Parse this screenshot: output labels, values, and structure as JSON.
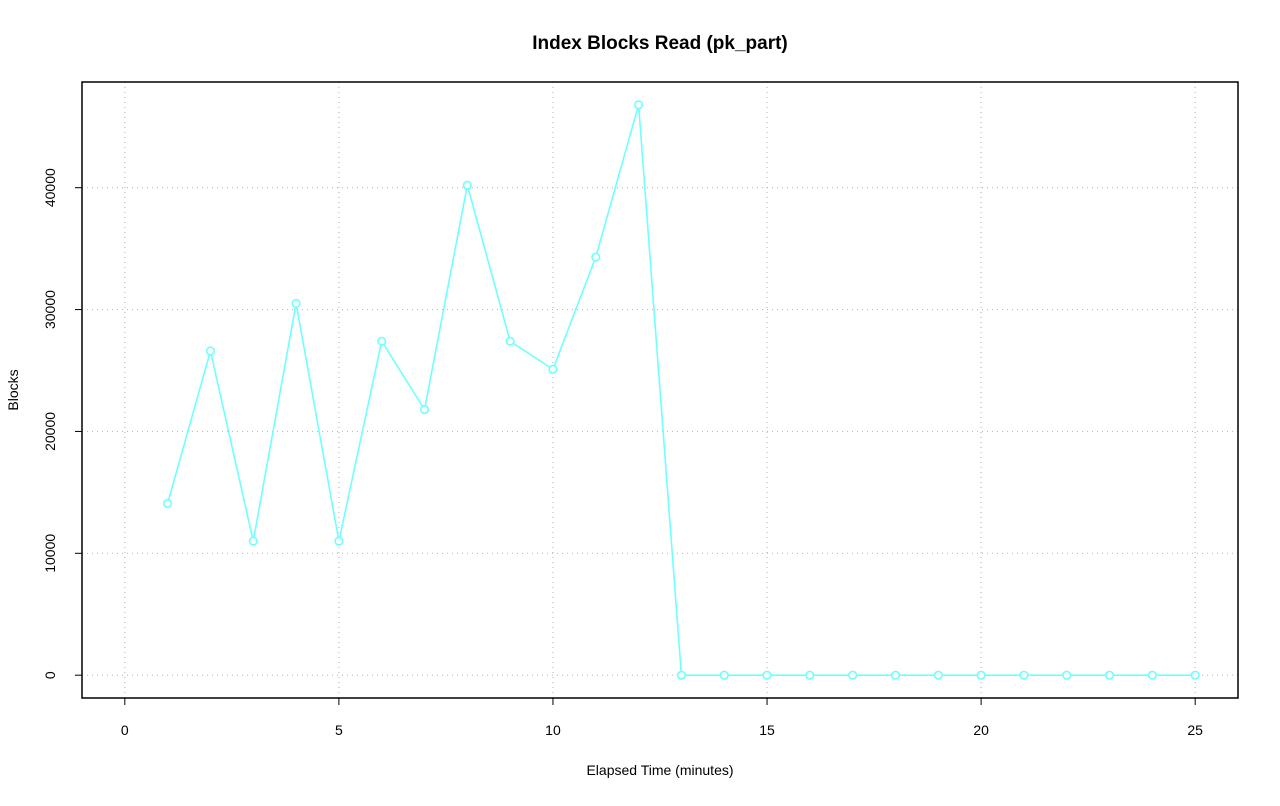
{
  "chart_data": {
    "type": "line",
    "title": "Index Blocks Read (pk_part)",
    "x_label": "Elapsed Time (minutes)",
    "y_label": "Blocks",
    "x": [
      1,
      2,
      3,
      4,
      5,
      6,
      7,
      8,
      9,
      10,
      11,
      12,
      13,
      14,
      15,
      16,
      17,
      18,
      19,
      20,
      21,
      22,
      23,
      24,
      25
    ],
    "series": [
      {
        "color": "#70ffff",
        "values": [
          14100,
          26600,
          11000,
          30500,
          11000,
          27400,
          21800,
          40200,
          27400,
          25100,
          34300,
          46800,
          0,
          0,
          0,
          0,
          0,
          0,
          0,
          0,
          0,
          0,
          0,
          0,
          0
        ]
      }
    ],
    "xlim": [
      -1,
      26
    ],
    "xticks": [
      0,
      5,
      10,
      15,
      20,
      25
    ],
    "ylim": [
      -1872,
      48672
    ],
    "yticks": [
      0,
      10000,
      20000,
      30000,
      40000
    ],
    "grid": true
  }
}
